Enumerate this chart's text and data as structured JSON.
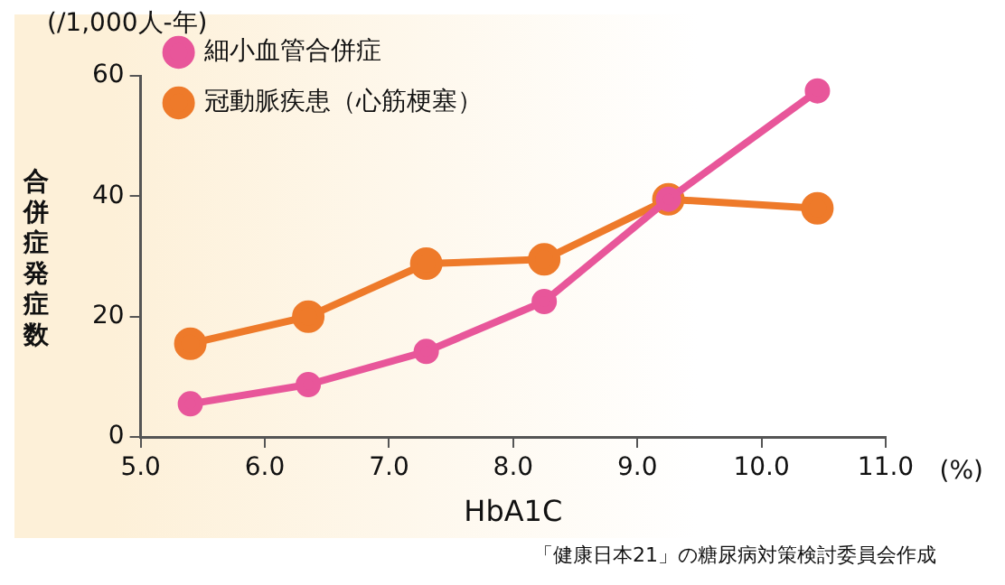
{
  "chart_data": {
    "type": "line",
    "xlabel": "HbA1C",
    "ylabel": "合併症発症数",
    "annotations": [
      "(/1,000人-年)",
      "(%)",
      "「健康日本21」の糖尿病対策検討委員会作成"
    ],
    "x": [
      5.4,
      6.35,
      7.3,
      8.25,
      9.25,
      10.45
    ],
    "series": [
      {
        "name": "細小血管合併症",
        "color": "#e8569a",
        "values": [
          5.5,
          8.7,
          14.2,
          22.5,
          39.5,
          57.5
        ]
      },
      {
        "name": "冠動脈疾患（心筋梗塞）",
        "color": "#ee7a2a",
        "values": [
          15.5,
          20,
          28.8,
          29.5,
          39.5,
          38
        ]
      }
    ],
    "xlim": [
      5.0,
      11.0
    ],
    "xticks": [
      {
        "value": 5,
        "label": "5.0"
      },
      {
        "value": 6,
        "label": "6.0"
      },
      {
        "value": 7,
        "label": "7.0"
      },
      {
        "value": 8,
        "label": "8.0"
      },
      {
        "value": 9,
        "label": "9.0"
      },
      {
        "value": 10,
        "label": "10.0"
      },
      {
        "value": 11,
        "label": "11.0"
      }
    ],
    "ylim": [
      0,
      60
    ],
    "yticks": [
      0,
      20,
      40,
      60
    ],
    "grid": false,
    "legend": "top left",
    "marker": "circle",
    "line_style": "solid"
  }
}
